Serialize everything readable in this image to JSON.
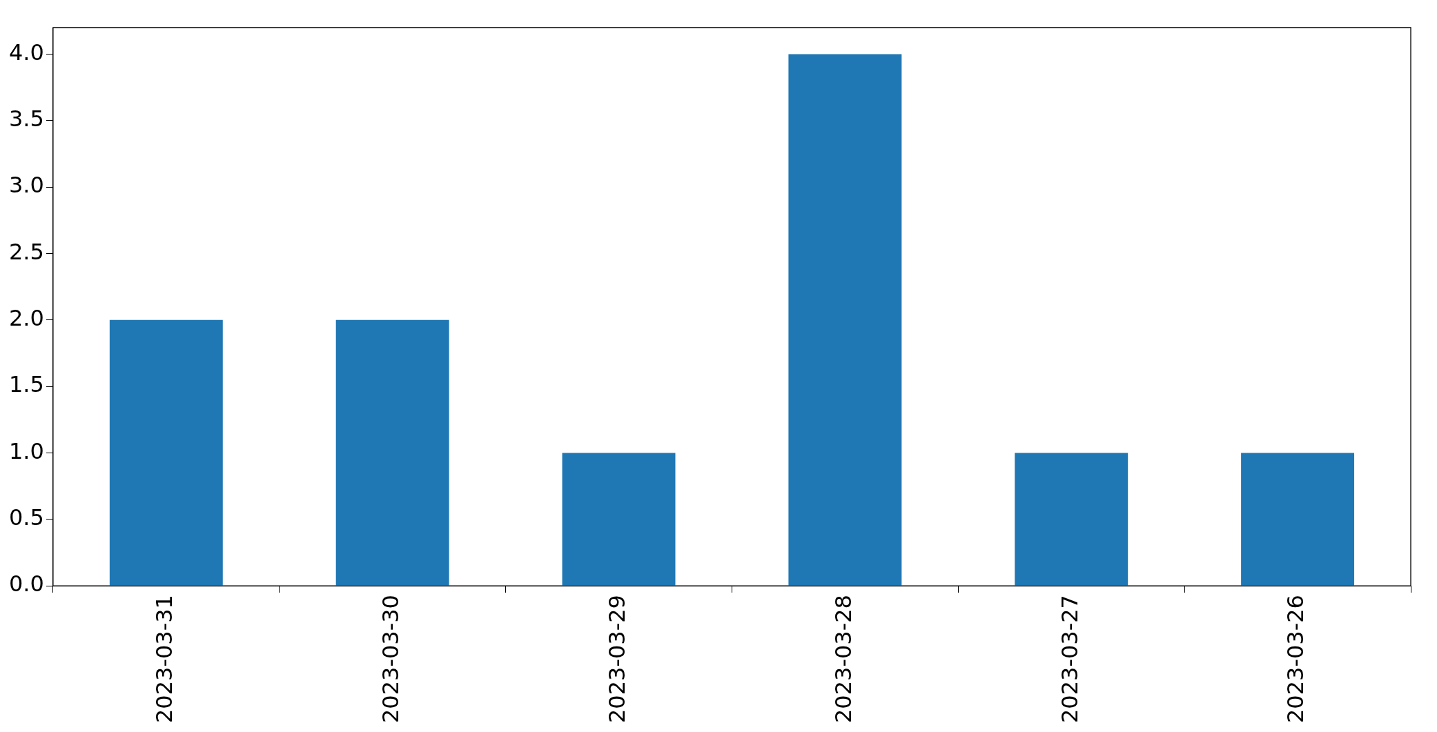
{
  "chart_data": {
    "type": "bar",
    "categories": [
      "2023-03-31",
      "2023-03-30",
      "2023-03-29",
      "2023-03-28",
      "2023-03-27",
      "2023-03-26"
    ],
    "values": [
      2,
      2,
      1,
      4,
      1,
      1
    ],
    "color": "#1f77b4",
    "ylim": [
      0,
      4.2
    ],
    "yticks": [
      {
        "value": 0,
        "label": "0.0"
      },
      {
        "value": 0.5,
        "label": "0.5"
      },
      {
        "value": 1,
        "label": "1.0"
      },
      {
        "value": 1.5,
        "label": "1.5"
      },
      {
        "value": 2,
        "label": "2.0"
      },
      {
        "value": 2.5,
        "label": "2.5"
      },
      {
        "value": 3,
        "label": "3.0"
      },
      {
        "value": 3.5,
        "label": "3.5"
      },
      {
        "value": 4,
        "label": "4.0"
      }
    ],
    "grid": false,
    "legend": false
  }
}
